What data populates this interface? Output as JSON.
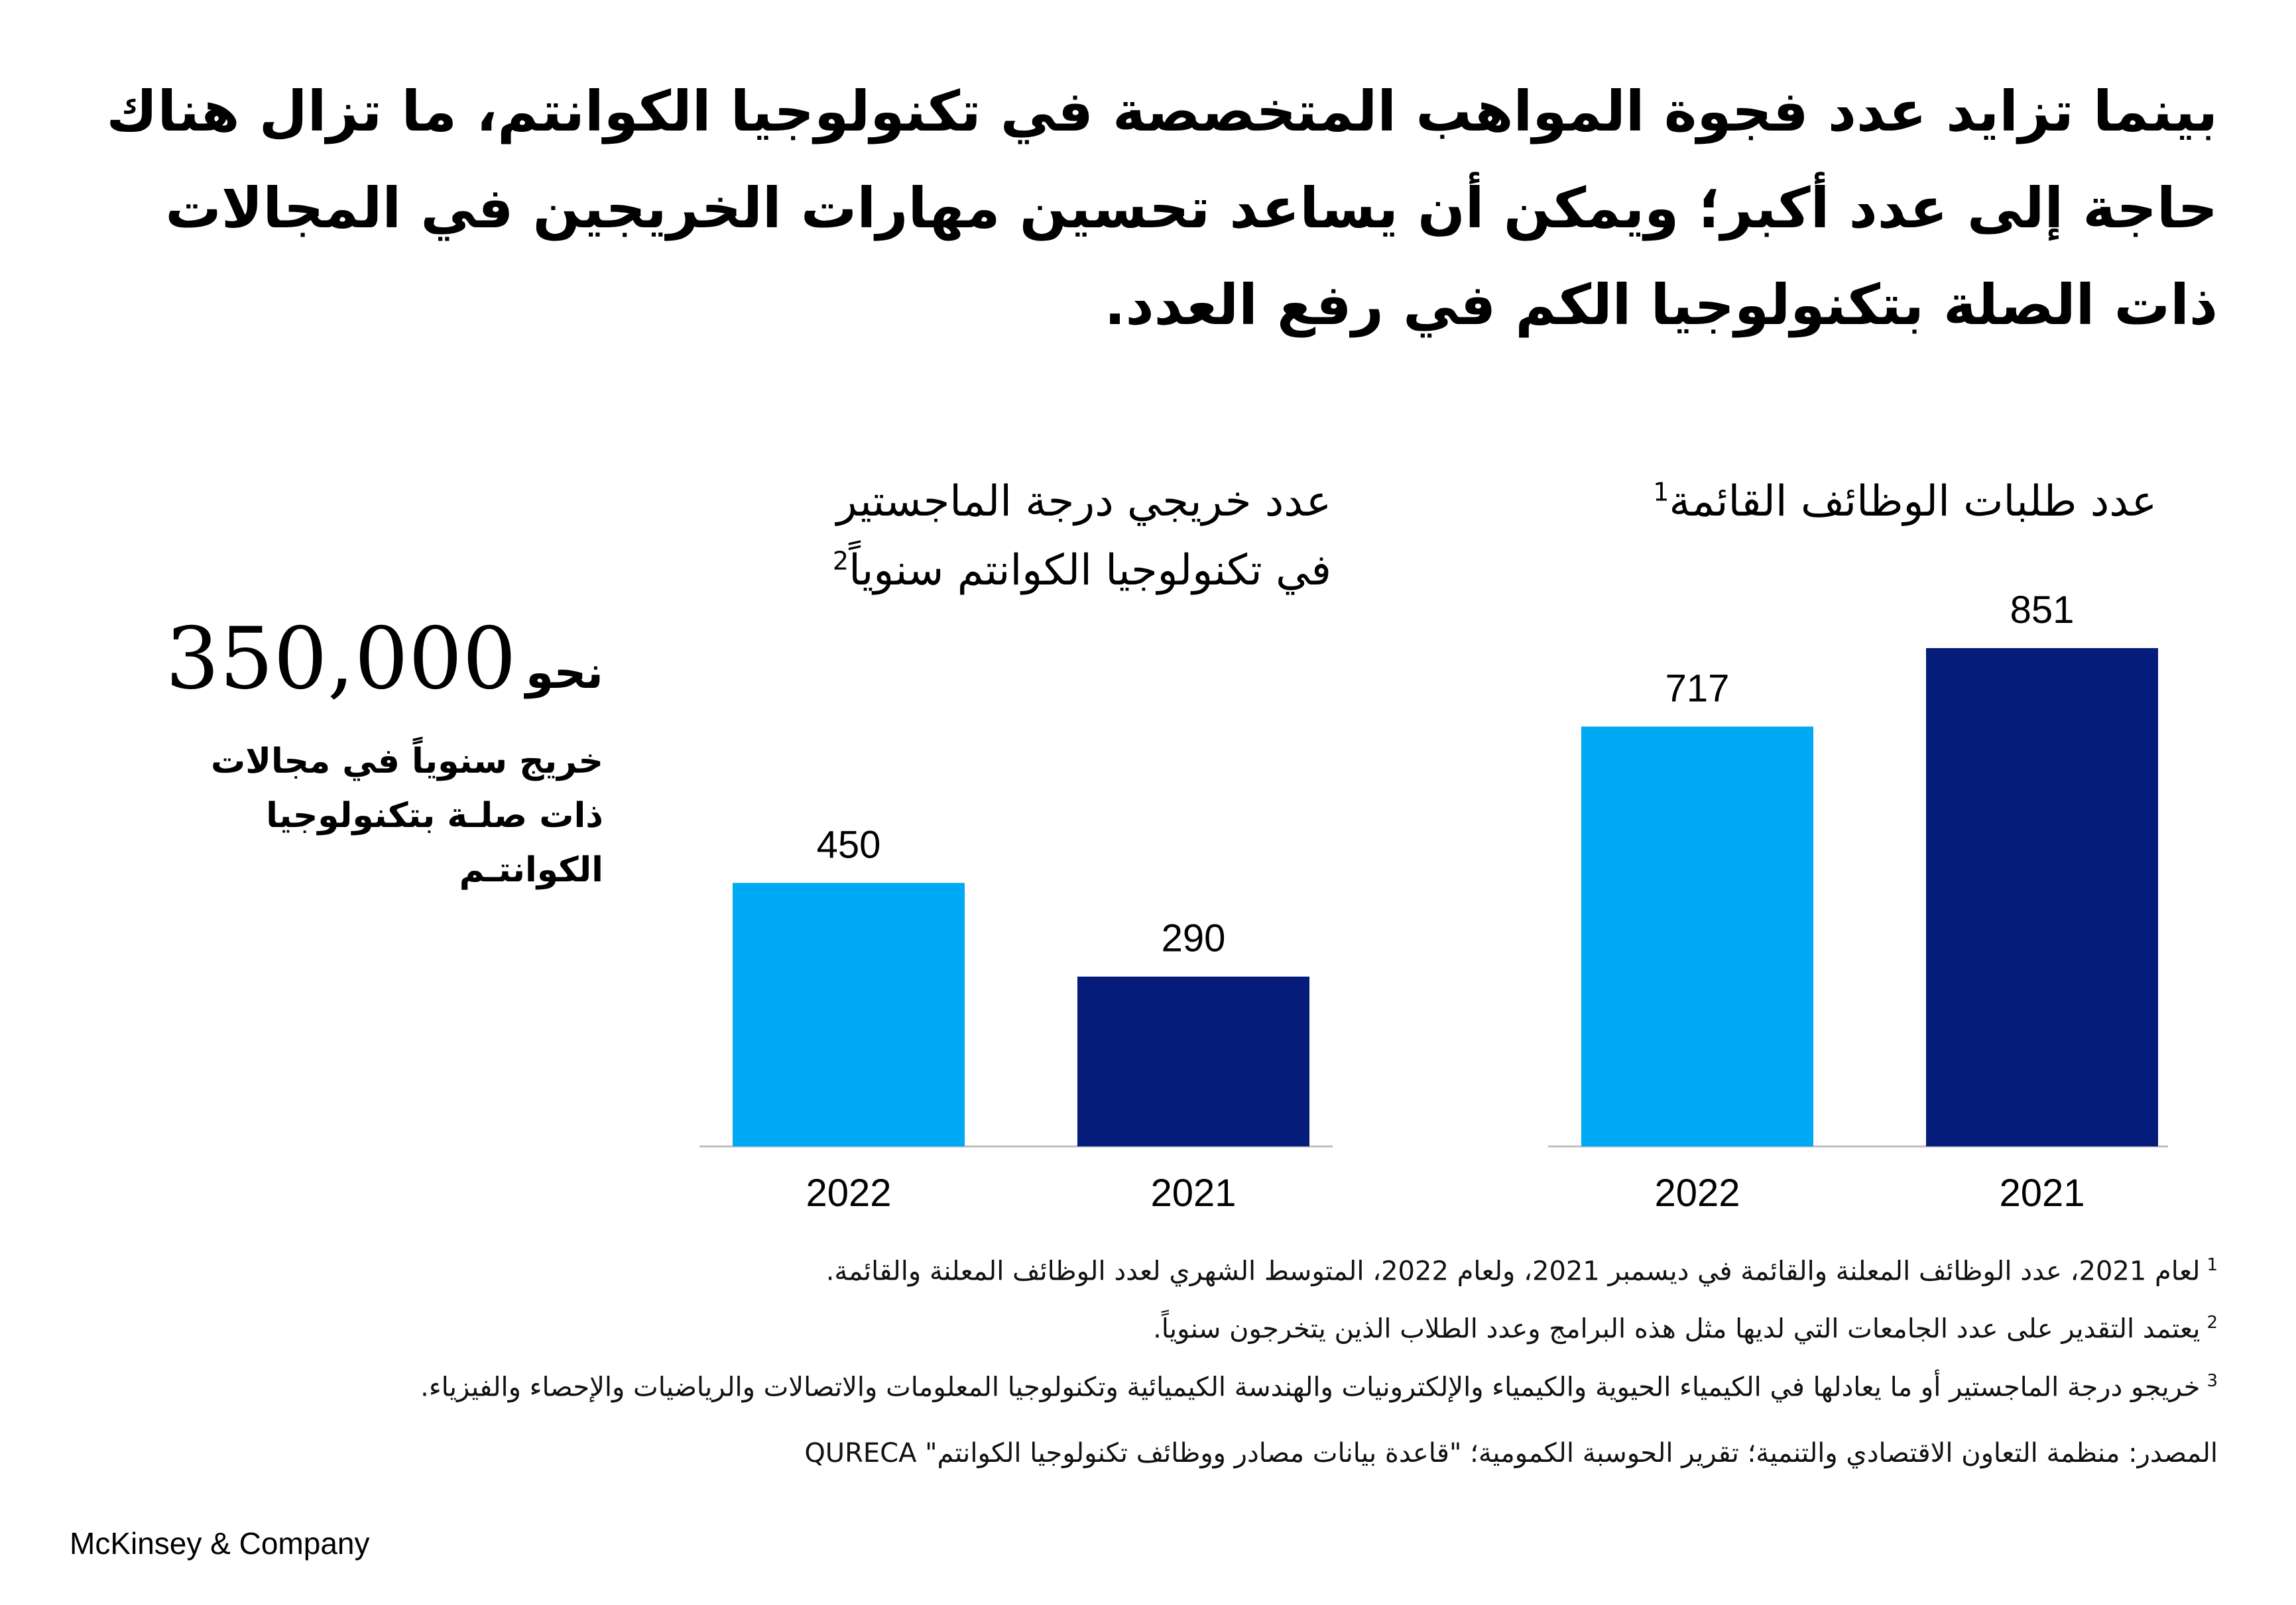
{
  "headline": "بينما تزايد عدد فجوة المواهب المتخصصة في تكنولوجيا الكوانتم، ما تزال هناك حاجة إلى عدد أكبر؛ ويمكن أن يساعد تحسين مهارات الخريجين في المجالات ذات الصلة بتكنولوجيا الكم في رفع العدد.",
  "callout": {
    "prefix": "نحو",
    "value": "350,000",
    "description": "خريج سنوياً في مجالات ذات صلـة بتكنولوجيا الكوانتـم"
  },
  "colors": {
    "bar_2022": "#00a9f4",
    "bar_2021": "#051c7b",
    "axis": "#bfbfbf"
  },
  "chart_data": [
    {
      "type": "bar",
      "title": "عدد طلبات الوظائف القائمة",
      "title_footnote": "1",
      "categories": [
        "2022",
        "2021"
      ],
      "values": [
        717,
        851
      ],
      "ylim": [
        0,
        851
      ],
      "grid": false
    },
    {
      "type": "bar",
      "title_line1": "عدد خريجي درجة الماجستير",
      "title_line2": "في تكنولوجيا الكوانتم سنوياً",
      "title_footnote": "2",
      "categories": [
        "2022",
        "2021"
      ],
      "values": [
        450,
        290
      ],
      "ylim": [
        0,
        851
      ],
      "grid": false
    }
  ],
  "footnotes": [
    {
      "mark": "1",
      "text": "لعام 2021، عدد الوظائف المعلنة والقائمة في ديسمبر 2021، ولعام 2022، المتوسط الشهري لعدد الوظائف المعلنة والقائمة."
    },
    {
      "mark": "2",
      "text": "يعتمد التقدير على عدد الجامعات التي لديها مثل هذه البرامج وعدد الطلاب الذين يتخرجون سنوياً."
    },
    {
      "mark": "3",
      "text": "خريجو درجة الماجستير أو ما يعادلها في الكيمياء الحيوية والكيمياء والإلكترونيات والهندسة الكيميائية وتكنولوجيا المعلومات والاتصالات والرياضيات والإحصاء والفيزياء."
    }
  ],
  "source": "المصدر: منظمة التعاون الاقتصادي والتنمية؛ تقرير الحوسبة الكمومية؛ \"قاعدة بيانات مصادر ووظائف تكنولوجيا الكوانتم\" QURECA",
  "brand": "McKinsey & Company"
}
